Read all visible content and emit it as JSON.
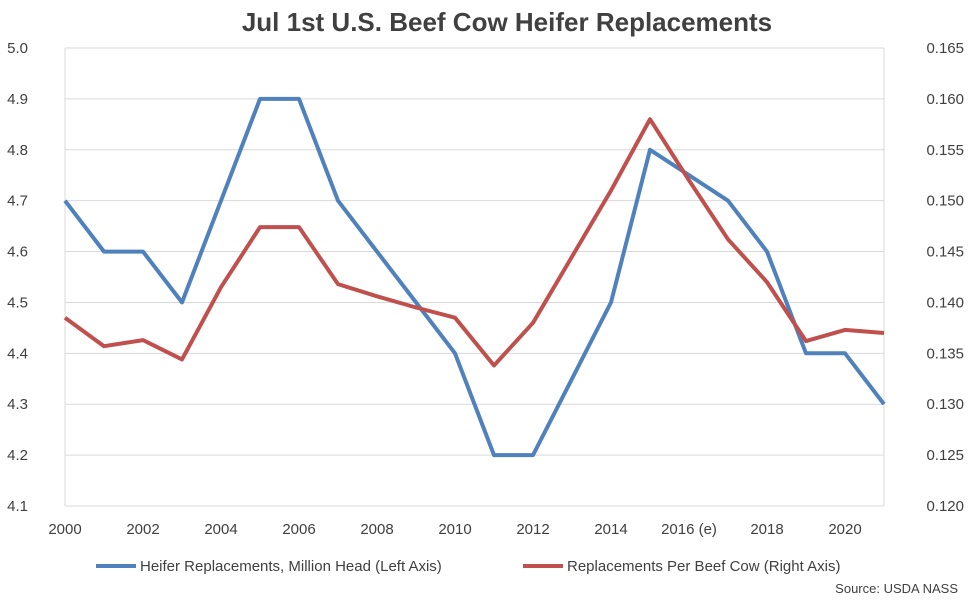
{
  "chart_data": {
    "type": "line",
    "title": "Jul 1st U.S. Beef Cow Heifer Replacements",
    "source": "Source: USDA NASS",
    "x": [
      2000,
      2001,
      2002,
      2003,
      2004,
      2005,
      2006,
      2007,
      2008,
      2009,
      2010,
      2011,
      2012,
      2013,
      2014,
      2015,
      2016,
      2017,
      2018,
      2019,
      2020,
      2021
    ],
    "x_tick_labels": [
      "2000",
      "2002",
      "2004",
      "2006",
      "2008",
      "2010",
      "2012",
      "2014",
      "2016 (e)",
      "2018",
      "2020"
    ],
    "x_tick_years": [
      2000,
      2002,
      2004,
      2006,
      2008,
      2010,
      2012,
      2014,
      2016,
      2018,
      2020
    ],
    "left_axis": {
      "ylim": [
        4.1,
        5.0
      ],
      "ticks": [
        "4.1",
        "4.2",
        "4.3",
        "4.4",
        "4.5",
        "4.6",
        "4.7",
        "4.8",
        "4.9",
        "5.0"
      ]
    },
    "right_axis": {
      "ylim": [
        0.12,
        0.165
      ],
      "ticks": [
        "0.120",
        "0.125",
        "0.130",
        "0.135",
        "0.140",
        "0.145",
        "0.150",
        "0.155",
        "0.160",
        "0.165"
      ]
    },
    "series": [
      {
        "name": "Heifer Replacements, Million Head (Left Axis)",
        "axis": "left",
        "color": "#4f81bd",
        "values": [
          4.7,
          4.6,
          4.6,
          4.5,
          4.7,
          4.9,
          4.9,
          4.7,
          4.6,
          4.5,
          4.4,
          4.2,
          4.2,
          4.35,
          4.5,
          4.8,
          4.75,
          4.7,
          4.6,
          4.4,
          4.4,
          4.3
        ]
      },
      {
        "name": "Replacements Per Beef Cow (Right Axis)",
        "axis": "right",
        "color": "#c0504d",
        "values": [
          0.1385,
          0.1357,
          0.1363,
          0.1344,
          0.1415,
          0.1474,
          0.1474,
          0.1418,
          0.1406,
          0.1395,
          0.1385,
          0.1338,
          0.138,
          0.1445,
          0.151,
          0.158,
          0.152,
          0.1462,
          0.142,
          0.1362,
          0.1373,
          0.137
        ]
      }
    ],
    "grid": true,
    "legend_position": "bottom"
  }
}
